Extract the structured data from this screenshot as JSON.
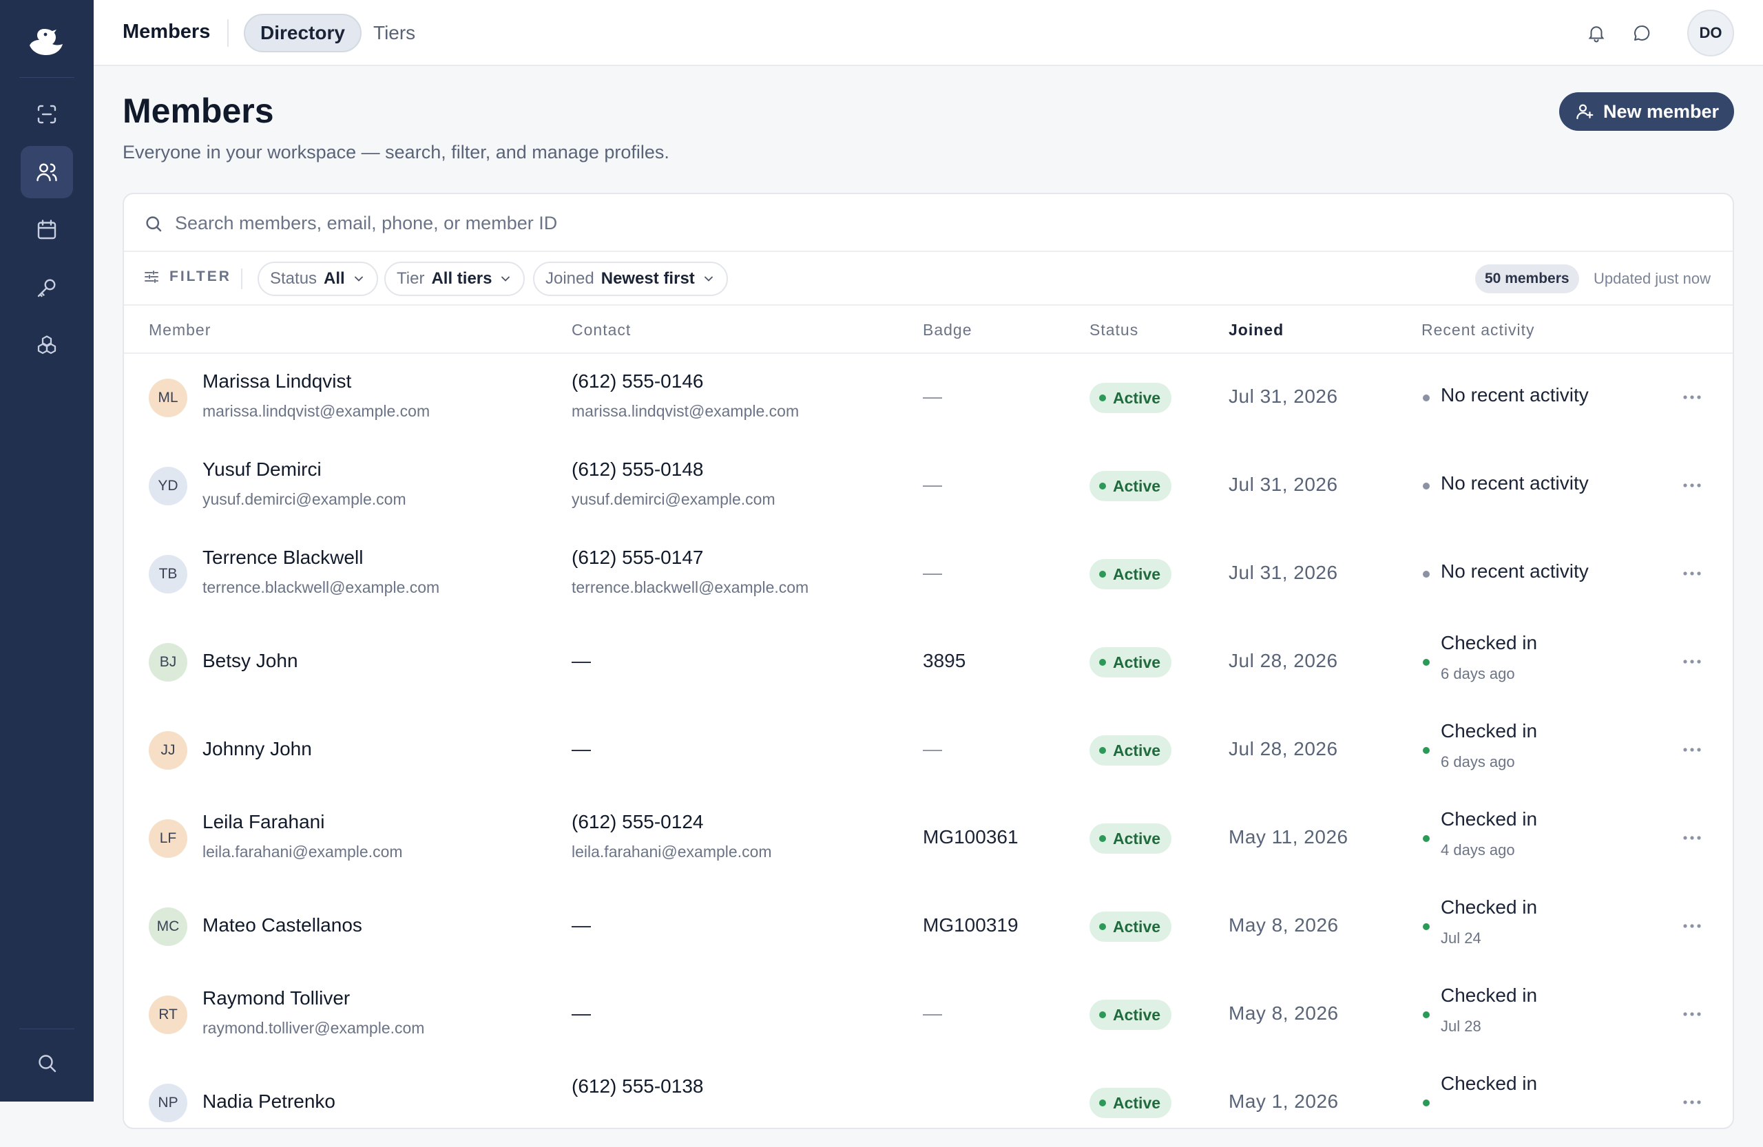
{
  "colors": {
    "sidebar_bg": "#22304f",
    "accent": "#34476b",
    "status_active_bg": "#def1e4",
    "status_active_text": "#1f6b3d",
    "activity_green": "#2c9a57",
    "activity_grey": "#8a92a3"
  },
  "sidebar": {
    "logo": "duck-logo-icon",
    "items": [
      {
        "icon": "scan-icon",
        "active": false
      },
      {
        "icon": "users-icon",
        "active": true
      },
      {
        "icon": "calendar-icon",
        "active": false
      },
      {
        "icon": "key-icon",
        "active": false
      },
      {
        "icon": "boxes-icon",
        "active": false
      }
    ],
    "bottom": {
      "icon": "search-icon"
    }
  },
  "topbar": {
    "title": "Members",
    "tabs": [
      {
        "label": "Directory",
        "active": true
      },
      {
        "label": "Tiers",
        "active": false
      }
    ],
    "icons": [
      "bell-icon",
      "chat-icon"
    ],
    "avatar_initials": "DO"
  },
  "header": {
    "title": "Members",
    "subtitle": "Everyone in your workspace — search, filter, and manage profiles.",
    "new_button_label": "New member"
  },
  "search": {
    "placeholder": "Search members, email, phone, or member ID",
    "value": ""
  },
  "filters": {
    "label": "FILTER",
    "chips": [
      {
        "key": "Status",
        "value": "All"
      },
      {
        "key": "Tier",
        "value": "All tiers"
      },
      {
        "key": "Joined",
        "value": "Newest first"
      }
    ],
    "count": "50 members",
    "updated": "Updated just now"
  },
  "table": {
    "columns": [
      "Member",
      "Contact",
      "Badge",
      "Status",
      "Joined",
      "Recent activity"
    ],
    "sorted_column": "Joined",
    "rows": [
      {
        "initials": "ML",
        "avatar_color": "peach",
        "name": "Marissa Lindqvist",
        "email": "marissa.lindqvist@example.com",
        "phone": "(612) 555-0146",
        "contact_email": "marissa.lindqvist@example.com",
        "badge": "—",
        "status": "Active",
        "joined": "Jul 31, 2026",
        "activity": "No recent activity",
        "activity_sub": "",
        "activity_state": "none"
      },
      {
        "initials": "YD",
        "avatar_color": "blue",
        "name": "Yusuf Demirci",
        "email": "yusuf.demirci@example.com",
        "phone": "(612) 555-0148",
        "contact_email": "yusuf.demirci@example.com",
        "badge": "—",
        "status": "Active",
        "joined": "Jul 31, 2026",
        "activity": "No recent activity",
        "activity_sub": "",
        "activity_state": "none"
      },
      {
        "initials": "TB",
        "avatar_color": "blue",
        "name": "Terrence Blackwell",
        "email": "terrence.blackwell@example.com",
        "phone": "(612) 555-0147",
        "contact_email": "terrence.blackwell@example.com",
        "badge": "—",
        "status": "Active",
        "joined": "Jul 31, 2026",
        "activity": "No recent activity",
        "activity_sub": "",
        "activity_state": "none"
      },
      {
        "initials": "BJ",
        "avatar_color": "green",
        "name": "Betsy John",
        "email": "",
        "phone": "—",
        "contact_email": "",
        "badge": "3895",
        "status": "Active",
        "joined": "Jul 28, 2026",
        "activity": "Checked in",
        "activity_sub": "6 days ago",
        "activity_state": "checked"
      },
      {
        "initials": "JJ",
        "avatar_color": "peach",
        "name": "Johnny John",
        "email": "",
        "phone": "—",
        "contact_email": "",
        "badge": "—",
        "status": "Active",
        "joined": "Jul 28, 2026",
        "activity": "Checked in",
        "activity_sub": "6 days ago",
        "activity_state": "checked"
      },
      {
        "initials": "LF",
        "avatar_color": "peach",
        "name": "Leila Farahani",
        "email": "leila.farahani@example.com",
        "phone": "(612) 555-0124",
        "contact_email": "leila.farahani@example.com",
        "badge": "MG100361",
        "status": "Active",
        "joined": "May 11, 2026",
        "activity": "Checked in",
        "activity_sub": "4 days ago",
        "activity_state": "checked"
      },
      {
        "initials": "MC",
        "avatar_color": "green",
        "name": "Mateo Castellanos",
        "email": "",
        "phone": "—",
        "contact_email": "",
        "badge": "MG100319",
        "status": "Active",
        "joined": "May 8, 2026",
        "activity": "Checked in",
        "activity_sub": "Jul 24",
        "activity_state": "checked"
      },
      {
        "initials": "RT",
        "avatar_color": "peach",
        "name": "Raymond Tolliver",
        "email": "raymond.tolliver@example.com",
        "phone": "—",
        "contact_email": "",
        "badge": "—",
        "status": "Active",
        "joined": "May 8, 2026",
        "activity": "Checked in",
        "activity_sub": "Jul 28",
        "activity_state": "checked"
      },
      {
        "initials": "NP",
        "avatar_color": "blue",
        "name": "Nadia Petrenko",
        "email": "",
        "phone": "(612) 555-0138",
        "contact_email": "",
        "badge": "",
        "status": "Active",
        "joined": "May 1, 2026",
        "activity": "Checked in",
        "activity_sub": "",
        "activity_state": "checked"
      }
    ]
  }
}
